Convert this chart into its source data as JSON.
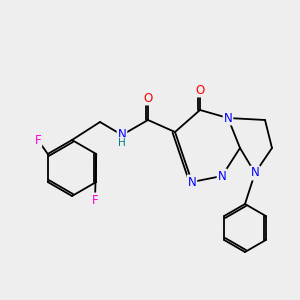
{
  "background_color": "#eeeeee",
  "atom_colors": {
    "N": "#0000ff",
    "O": "#ff0000",
    "F": "#ff00cc",
    "H": "#008080"
  },
  "bond_color": "#000000",
  "bond_lw": 1.3,
  "font_size": 8.5
}
